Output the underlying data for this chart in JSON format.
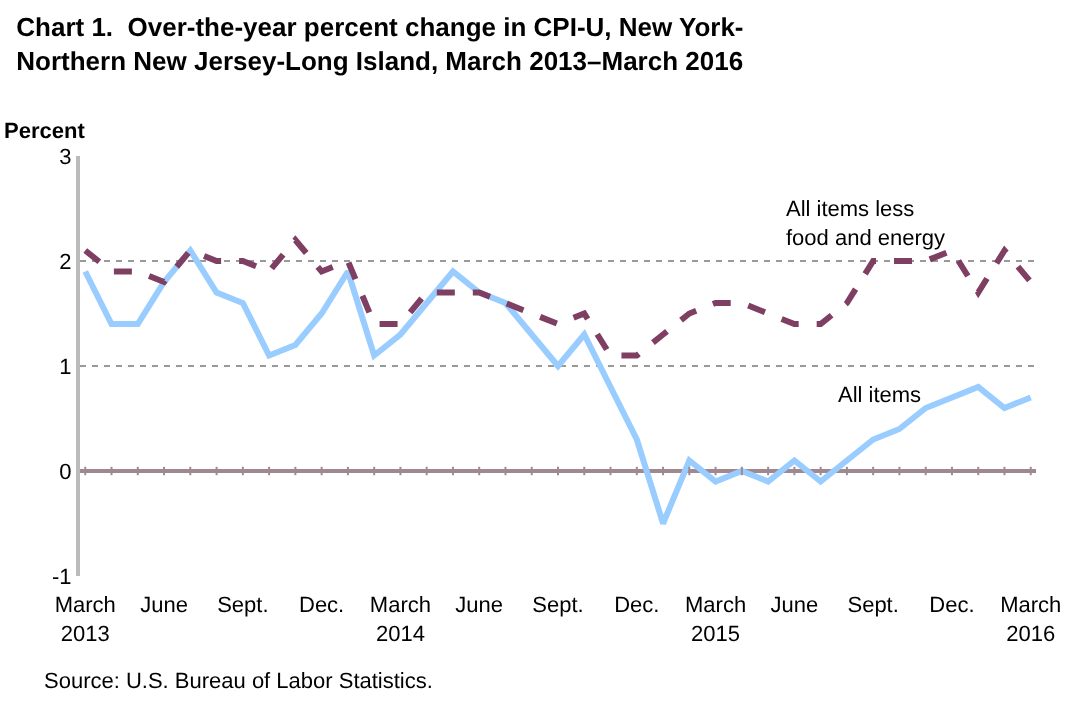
{
  "chart_data": {
    "type": "line",
    "title": "Chart 1.  Over-the-year percent change in CPI-U, New York-Northern New Jersey-Long Island, March 2013–March 2016",
    "ylabel": "Percent",
    "categories": [
      "March 2013",
      null,
      null,
      "June",
      null,
      null,
      "Sept.",
      null,
      null,
      "Dec.",
      null,
      null,
      "March 2014",
      null,
      null,
      "June",
      null,
      null,
      "Sept.",
      null,
      null,
      "Dec.",
      null,
      null,
      "March 2015",
      null,
      null,
      "June",
      null,
      null,
      "Sept.",
      null,
      null,
      "Dec.",
      null,
      null,
      "March 2016"
    ],
    "series": [
      {
        "name": "All items",
        "color": "#99ccff",
        "line_style": "solid",
        "values": [
          1.9,
          1.4,
          1.4,
          1.8,
          2.1,
          1.7,
          1.6,
          1.1,
          1.2,
          1.5,
          1.9,
          1.1,
          1.3,
          1.6,
          1.9,
          1.7,
          1.6,
          1.3,
          1.0,
          1.3,
          0.8,
          0.3,
          -0.5,
          0.1,
          -0.1,
          0.0,
          -0.1,
          0.1,
          -0.1,
          0.1,
          0.3,
          0.4,
          0.6,
          0.7,
          0.8,
          0.6,
          0.7
        ]
      },
      {
        "name": "All items less food and energy",
        "color": "#7f3f62",
        "line_style": "dashed",
        "values": [
          2.1,
          1.9,
          1.9,
          1.8,
          2.1,
          2.0,
          2.0,
          1.9,
          2.2,
          1.9,
          2.0,
          1.4,
          1.4,
          1.7,
          1.7,
          1.7,
          1.6,
          1.5,
          1.4,
          1.5,
          1.1,
          1.1,
          1.3,
          1.5,
          1.6,
          1.6,
          1.5,
          1.4,
          1.4,
          1.6,
          2.0,
          2.0,
          2.0,
          2.1,
          1.7,
          2.1,
          1.8
        ]
      }
    ],
    "ylim": [
      -1,
      3
    ],
    "yticks": [
      -1,
      0,
      1,
      2,
      3
    ],
    "grid": "y",
    "legend": false,
    "annotations": [
      "Source: U.S. Bureau of Labor Statistics."
    ]
  }
}
